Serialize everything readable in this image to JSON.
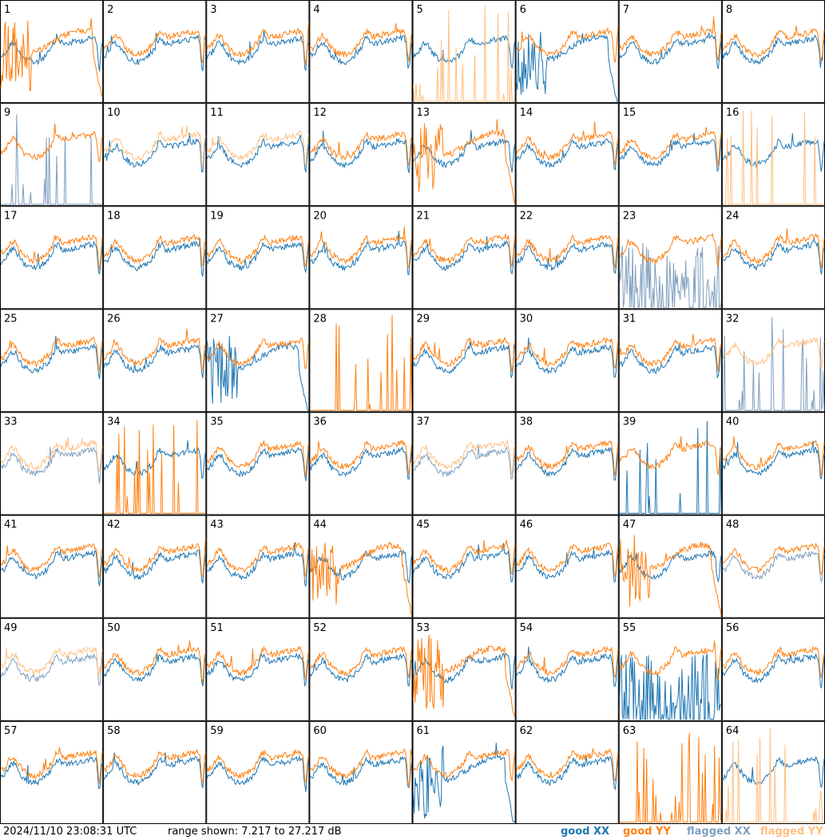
{
  "chart_data": {
    "type": "line",
    "layout": "8x8 small multiples of per-antenna spectra",
    "panels": [
      {
        "label": "1",
        "xx": "good",
        "yy": "good",
        "yy_shape": "dropoff"
      },
      {
        "label": "2",
        "xx": "good",
        "yy": "good"
      },
      {
        "label": "3",
        "xx": "good",
        "yy": "good"
      },
      {
        "label": "4",
        "xx": "good",
        "yy": "good"
      },
      {
        "label": "5",
        "xx": "good",
        "yy": "flagged_spikes"
      },
      {
        "label": "6",
        "xx": "good",
        "yy": "good",
        "xx_shape": "dropoff"
      },
      {
        "label": "7",
        "xx": "good",
        "yy": "good"
      },
      {
        "label": "8",
        "xx": "good",
        "yy": "good"
      },
      {
        "label": "9",
        "xx": "flagged_spikes",
        "yy": "good"
      },
      {
        "label": "10",
        "xx": "good",
        "yy": "flagged"
      },
      {
        "label": "11",
        "xx": "good",
        "yy": "flagged"
      },
      {
        "label": "12",
        "xx": "good",
        "yy": "good"
      },
      {
        "label": "13",
        "xx": "good",
        "yy": "good",
        "yy_shape": "dropoff"
      },
      {
        "label": "14",
        "xx": "good",
        "yy": "good"
      },
      {
        "label": "15",
        "xx": "good",
        "yy": "good"
      },
      {
        "label": "16",
        "xx": "good",
        "yy": "flagged_spikes"
      },
      {
        "label": "17",
        "xx": "good",
        "yy": "good"
      },
      {
        "label": "18",
        "xx": "good",
        "yy": "good"
      },
      {
        "label": "19",
        "xx": "good",
        "yy": "good"
      },
      {
        "label": "20",
        "xx": "good",
        "yy": "good"
      },
      {
        "label": "21",
        "xx": "good",
        "yy": "good"
      },
      {
        "label": "22",
        "xx": "good",
        "yy": "good"
      },
      {
        "label": "23",
        "xx": "flagged_noise",
        "yy": "good"
      },
      {
        "label": "24",
        "xx": "good",
        "yy": "good"
      },
      {
        "label": "25",
        "xx": "good",
        "yy": "good"
      },
      {
        "label": "26",
        "xx": "good",
        "yy": "good"
      },
      {
        "label": "27",
        "xx": "good",
        "yy": "good",
        "xx_shape": "dropoff"
      },
      {
        "label": "28",
        "xx": "none",
        "yy": "good_spikes"
      },
      {
        "label": "29",
        "xx": "good",
        "yy": "good"
      },
      {
        "label": "30",
        "xx": "good",
        "yy": "good"
      },
      {
        "label": "31",
        "xx": "good",
        "yy": "good"
      },
      {
        "label": "32",
        "xx": "flagged_spikes",
        "yy": "flagged"
      },
      {
        "label": "33",
        "xx": "flagged",
        "yy": "flagged"
      },
      {
        "label": "34",
        "xx": "good",
        "yy": "good_spikes"
      },
      {
        "label": "35",
        "xx": "good",
        "yy": "good"
      },
      {
        "label": "36",
        "xx": "good",
        "yy": "good"
      },
      {
        "label": "37",
        "xx": "flagged",
        "yy": "flagged"
      },
      {
        "label": "38",
        "xx": "good",
        "yy": "good"
      },
      {
        "label": "39",
        "xx": "good_spikes",
        "yy": "good"
      },
      {
        "label": "40",
        "xx": "good",
        "yy": "good"
      },
      {
        "label": "41",
        "xx": "good",
        "yy": "good"
      },
      {
        "label": "42",
        "xx": "good",
        "yy": "good"
      },
      {
        "label": "43",
        "xx": "good",
        "yy": "good"
      },
      {
        "label": "44",
        "xx": "good",
        "yy": "good",
        "yy_shape": "dropoff"
      },
      {
        "label": "45",
        "xx": "good",
        "yy": "good"
      },
      {
        "label": "46",
        "xx": "good",
        "yy": "good"
      },
      {
        "label": "47",
        "xx": "good",
        "yy": "good",
        "yy_shape": "dropoff"
      },
      {
        "label": "48",
        "xx": "flagged",
        "yy": "good"
      },
      {
        "label": "49",
        "xx": "flagged",
        "yy": "flagged"
      },
      {
        "label": "50",
        "xx": "good",
        "yy": "good"
      },
      {
        "label": "51",
        "xx": "good",
        "yy": "good"
      },
      {
        "label": "52",
        "xx": "good",
        "yy": "good"
      },
      {
        "label": "53",
        "xx": "good",
        "yy": "good",
        "yy_shape": "dropoff"
      },
      {
        "label": "54",
        "xx": "good",
        "yy": "good"
      },
      {
        "label": "55",
        "xx": "good_noise",
        "yy": "good"
      },
      {
        "label": "56",
        "xx": "good",
        "yy": "good"
      },
      {
        "label": "57",
        "xx": "good",
        "yy": "good"
      },
      {
        "label": "58",
        "xx": "good",
        "yy": "good"
      },
      {
        "label": "59",
        "xx": "good",
        "yy": "good"
      },
      {
        "label": "60",
        "xx": "good",
        "yy": "good"
      },
      {
        "label": "61",
        "xx": "good",
        "yy": "good",
        "xx_shape": "dropoff"
      },
      {
        "label": "62",
        "xx": "good",
        "yy": "good"
      },
      {
        "label": "63",
        "xx": "none",
        "yy": "good_spikes"
      },
      {
        "label": "64",
        "xx": "good",
        "yy": "flagged_spikes"
      }
    ],
    "legend": [
      {
        "label": "good XX",
        "color": "#1f77b4"
      },
      {
        "label": "good YY",
        "color": "#ff7f0e"
      },
      {
        "label": "flagged XX",
        "color": "#7f9fbf"
      },
      {
        "label": "flagged YY",
        "color": "#ffbf80"
      }
    ],
    "legend_placement": "bottom-right"
  },
  "footer": {
    "timestamp": "2024/11/10 23:08:31 UTC",
    "range": "range shown: 7.217 to 27.217 dB"
  }
}
